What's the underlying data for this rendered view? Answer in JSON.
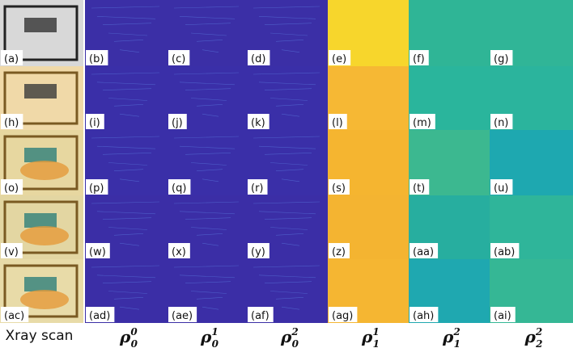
{
  "figure": {
    "panels": [
      [
        "(a)",
        "(b)",
        "(c)",
        "(d)",
        "(e)",
        "(f)",
        "(g)"
      ],
      [
        "(h)",
        "(i)",
        "(j)",
        "(k)",
        "(l)",
        "(m)",
        "(n)"
      ],
      [
        "(o)",
        "(p)",
        "(q)",
        "(r)",
        "(s)",
        "(t)",
        "(u)"
      ],
      [
        "(v)",
        "(w)",
        "(x)",
        "(y)",
        "(z)",
        "(aa)",
        "(ab)"
      ],
      [
        "(ac)",
        "(ad)",
        "(ae)",
        "(af)",
        "(ag)",
        "(ah)",
        "(ai)"
      ]
    ],
    "column_headers": [
      "Xray scan",
      {
        "symbol": "ρ",
        "sub": "0",
        "sup": "0"
      },
      {
        "symbol": "ρ",
        "sub": "0",
        "sup": "1"
      },
      {
        "symbol": "ρ",
        "sub": "0",
        "sup": "2"
      },
      {
        "symbol": "ρ",
        "sub": "1",
        "sup": "1"
      },
      {
        "symbol": "ρ",
        "sub": "1",
        "sup": "2"
      },
      {
        "symbol": "ρ",
        "sub": "2",
        "sup": "2"
      }
    ]
  }
}
